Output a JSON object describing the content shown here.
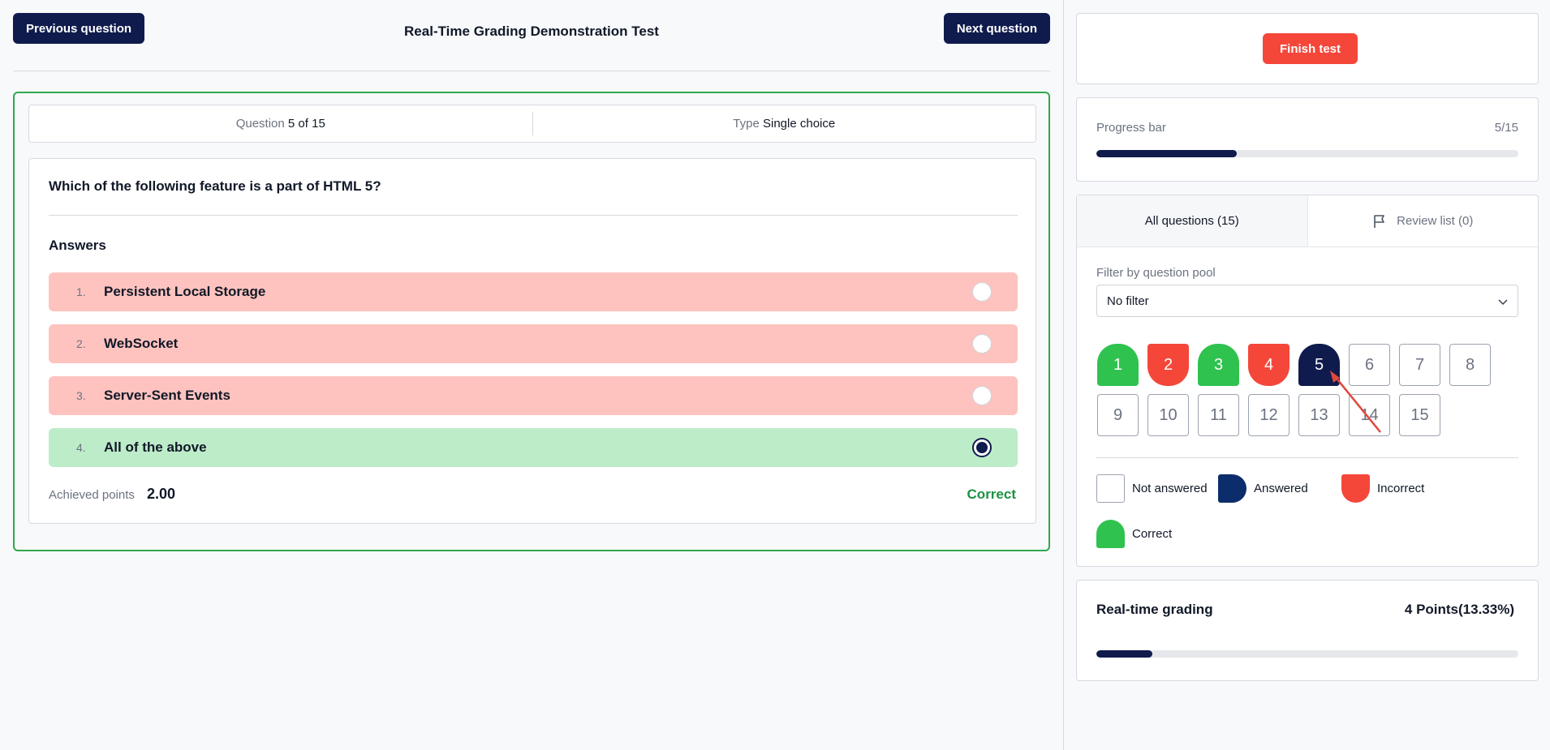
{
  "header": {
    "prev_label": "Previous question",
    "next_label": "Next question",
    "title": "Real-Time Grading Demonstration Test"
  },
  "question": {
    "number_label": "Question",
    "number_value": "5 of 15",
    "type_label": "Type",
    "type_value": "Single choice",
    "text": "Which of the following feature is a part of HTML 5?",
    "answers_heading": "Answers",
    "answers": [
      {
        "num": "1.",
        "text": "Persistent Local Storage",
        "state": "wrong",
        "selected": false
      },
      {
        "num": "2.",
        "text": "WebSocket",
        "state": "wrong",
        "selected": false
      },
      {
        "num": "3.",
        "text": "Server-Sent Events",
        "state": "wrong",
        "selected": false
      },
      {
        "num": "4.",
        "text": "All of the above",
        "state": "right",
        "selected": true
      }
    ],
    "points_label": "Achieved points",
    "points_value": "2.00",
    "result": "Correct"
  },
  "sidebar": {
    "finish_label": "Finish test",
    "progress": {
      "label": "Progress bar",
      "count": "5/15",
      "fraction": 0.333
    },
    "tabs": {
      "all": "All questions (15)",
      "review": "Review list (0)"
    },
    "filter": {
      "label": "Filter by question pool",
      "value": "No filter"
    },
    "questions": [
      {
        "n": "1",
        "status": "correct"
      },
      {
        "n": "2",
        "status": "incorrect"
      },
      {
        "n": "3",
        "status": "correct"
      },
      {
        "n": "4",
        "status": "incorrect"
      },
      {
        "n": "5",
        "status": "current"
      },
      {
        "n": "6",
        "status": "na"
      },
      {
        "n": "7",
        "status": "na"
      },
      {
        "n": "8",
        "status": "na"
      },
      {
        "n": "9",
        "status": "na"
      },
      {
        "n": "10",
        "status": "na"
      },
      {
        "n": "11",
        "status": "na"
      },
      {
        "n": "12",
        "status": "na"
      },
      {
        "n": "13",
        "status": "na"
      },
      {
        "n": "14",
        "status": "na"
      },
      {
        "n": "15",
        "status": "na"
      }
    ],
    "legend": {
      "not_answered": "Not answered",
      "answered": "Answered",
      "incorrect": "Incorrect",
      "correct": "Correct"
    },
    "grading": {
      "label": "Real-time grading",
      "value": "4 Points(13.33%)",
      "fraction": 0.1333
    }
  },
  "colors": {
    "navy": "#0f1b4c",
    "correct_green": "#2fc24f",
    "incorrect_red": "#f4473a",
    "answered_blue": "#0c2d6b",
    "wrong_answer_bg": "#fec3bf",
    "right_answer_bg": "#bdecc9"
  }
}
